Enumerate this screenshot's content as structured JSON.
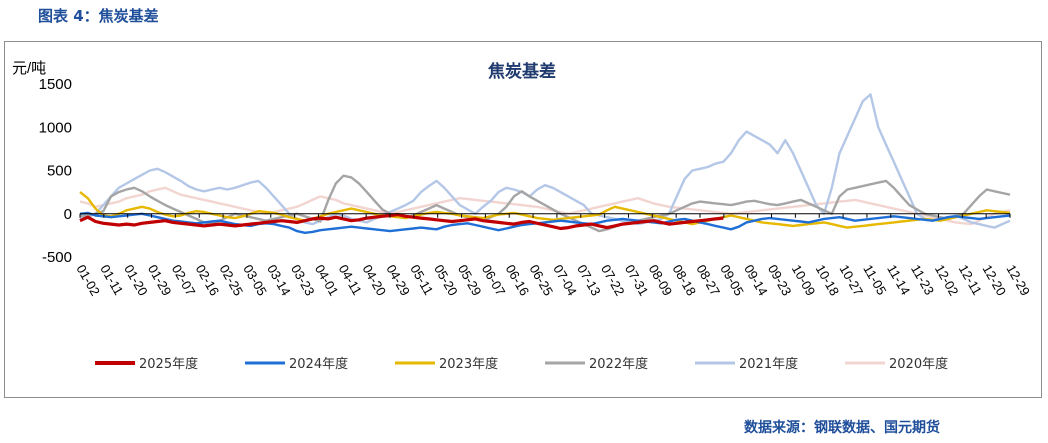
{
  "figure_title": "图表 4：焦炭基差",
  "source": "数据来源：钢联数据、国元期货",
  "chart_data": {
    "type": "line",
    "title": "焦炭基差",
    "ylabel": "元/吨",
    "ylim": [
      -500,
      1500
    ],
    "yticks": [
      "1500",
      "1000",
      "500",
      "0",
      "-500"
    ],
    "ytick_values": [
      1500,
      1000,
      500,
      0,
      -500
    ],
    "x_tick_labels": [
      "01-02",
      "01-11",
      "01-20",
      "01-29",
      "02-07",
      "02-16",
      "02-25",
      "03-05",
      "03-14",
      "03-23",
      "04-01",
      "04-11",
      "04-20",
      "04-29",
      "05-11",
      "05-20",
      "05-29",
      "06-07",
      "06-16",
      "06-25",
      "07-04",
      "07-13",
      "07-22",
      "07-31",
      "08-09",
      "08-18",
      "08-27",
      "09-05",
      "09-14",
      "09-23",
      "10-09",
      "10-18",
      "10-27",
      "11-05",
      "11-14",
      "11-23",
      "12-02",
      "12-11",
      "12-20",
      "12-29"
    ],
    "x": [
      0,
      2,
      4,
      6,
      8,
      10,
      12,
      14,
      16,
      18,
      20,
      22,
      24,
      26,
      28,
      30,
      32,
      34,
      36,
      38,
      40,
      42,
      44,
      46,
      48,
      50,
      52,
      54,
      56,
      58,
      60,
      62,
      64,
      66,
      68,
      70,
      72,
      74,
      76,
      78,
      80,
      82,
      84,
      86,
      88,
      90,
      92,
      94,
      96,
      98,
      100,
      102,
      104,
      106,
      108,
      110,
      112,
      114,
      116,
      118,
      120,
      122,
      124,
      126,
      128,
      130,
      132,
      134,
      136,
      138,
      140,
      142,
      144,
      146,
      148,
      150,
      152,
      154,
      156,
      158,
      160,
      162,
      164,
      166,
      168,
      170,
      172,
      174,
      176,
      178,
      180,
      182,
      184,
      186,
      188,
      190,
      192,
      194,
      196,
      198,
      200,
      202,
      204,
      206,
      208,
      210,
      212,
      214,
      216,
      218,
      220,
      222,
      224,
      226,
      228,
      230,
      232,
      234,
      236,
      238,
      240
    ],
    "series": [
      {
        "name": "2025年度",
        "color": "#c00000",
        "width": 3.2,
        "values": [
          -80,
          -40,
          -90,
          -110,
          -120,
          -130,
          -120,
          -130,
          -110,
          -100,
          -90,
          -80,
          -100,
          -110,
          -120,
          -130,
          -140,
          -130,
          -120,
          -130,
          -140,
          -130,
          -120,
          -110,
          -100,
          -90,
          -80,
          -90,
          -100,
          -80,
          -60,
          -50,
          -60,
          -40,
          -60,
          -80,
          -70,
          -50,
          -40,
          -30,
          -20,
          -10,
          -30,
          -40,
          -50,
          -60,
          -70,
          -80,
          -90,
          -80,
          -70,
          -60,
          -80,
          -90,
          -100,
          -110,
          -120,
          -100,
          -90,
          -110,
          -130,
          -150,
          -170,
          -160,
          -140,
          -130,
          -120,
          -140,
          -160,
          -140,
          -120,
          -110,
          -100,
          -90,
          -80,
          -100,
          -120,
          -110,
          -100,
          -90,
          -80,
          -70,
          -60,
          -50,
          null,
          null,
          null,
          null,
          null,
          null,
          null,
          null,
          null,
          null,
          null,
          null,
          null,
          null,
          null,
          null,
          null,
          null,
          null,
          null,
          null,
          null,
          null,
          null,
          null,
          null,
          null,
          null,
          null,
          null,
          null,
          null,
          null,
          null,
          null,
          null,
          null
        ]
      },
      {
        "name": "2024年度",
        "color": "#1f6fd6",
        "width": 2.4,
        "values": [
          0,
          10,
          -20,
          -30,
          -40,
          -30,
          -20,
          -10,
          0,
          -20,
          -40,
          -60,
          -80,
          -90,
          -100,
          -110,
          -100,
          -90,
          -80,
          -100,
          -120,
          -130,
          -140,
          -120,
          -110,
          -120,
          -140,
          -160,
          -200,
          -220,
          -210,
          -190,
          -180,
          -170,
          -160,
          -150,
          -160,
          -170,
          -180,
          -190,
          -200,
          -190,
          -180,
          -170,
          -160,
          -170,
          -180,
          -150,
          -130,
          -120,
          -110,
          -130,
          -150,
          -170,
          -190,
          -170,
          -150,
          -130,
          -120,
          -110,
          -100,
          -90,
          -80,
          -90,
          -100,
          -110,
          -120,
          -100,
          -80,
          -70,
          -60,
          -70,
          -80,
          -90,
          -100,
          -110,
          -90,
          -70,
          -60,
          -80,
          -100,
          -120,
          -140,
          -160,
          -180,
          -150,
          -100,
          -80,
          -60,
          -50,
          -60,
          -70,
          -80,
          -90,
          -100,
          -80,
          -60,
          -50,
          -40,
          -60,
          -80,
          -70,
          -60,
          -50,
          -40,
          -30,
          -40,
          -50,
          -60,
          -70,
          -80,
          -60,
          -40,
          -30,
          -40,
          -50,
          -60,
          -50,
          -40,
          -30,
          -20
        ]
      },
      {
        "name": "2023年度",
        "color": "#e6b800",
        "width": 2.4,
        "values": [
          250,
          180,
          60,
          -20,
          -30,
          0,
          40,
          60,
          80,
          60,
          20,
          -10,
          -30,
          -20,
          10,
          30,
          20,
          0,
          -20,
          -40,
          -50,
          -30,
          0,
          30,
          20,
          10,
          -10,
          -40,
          -60,
          -80,
          -60,
          -30,
          0,
          20,
          40,
          60,
          40,
          20,
          0,
          -20,
          -30,
          -40,
          -50,
          -30,
          -10,
          10,
          20,
          10,
          0,
          -20,
          -30,
          -40,
          -50,
          -30,
          -10,
          0,
          10,
          -10,
          -30,
          -50,
          -60,
          -70,
          -60,
          -50,
          -40,
          -30,
          -20,
          -10,
          40,
          80,
          60,
          40,
          20,
          0,
          -20,
          -40,
          -60,
          -80,
          -100,
          -120,
          -100,
          -80,
          -60,
          -40,
          -20,
          -40,
          -60,
          -80,
          -100,
          -110,
          -120,
          -130,
          -140,
          -130,
          -120,
          -110,
          -100,
          -120,
          -140,
          -160,
          -150,
          -140,
          -130,
          -120,
          -110,
          -100,
          -90,
          -80,
          -70,
          -60,
          -70,
          -80,
          -60,
          -40,
          -20,
          0,
          20,
          40,
          30,
          20,
          10
        ]
      },
      {
        "name": "2022年度",
        "color": "#a5a5a5",
        "width": 2.4,
        "values": [
          -30,
          -20,
          0,
          30,
          200,
          250,
          280,
          300,
          260,
          200,
          150,
          100,
          60,
          20,
          -20,
          -60,
          -100,
          -120,
          -80,
          -40,
          0,
          -20,
          -40,
          -60,
          -80,
          -60,
          -40,
          -20,
          0,
          -30,
          -60,
          -90,
          150,
          350,
          440,
          420,
          350,
          250,
          150,
          50,
          0,
          -30,
          -50,
          -20,
          20,
          60,
          100,
          60,
          20,
          -20,
          -40,
          -60,
          -80,
          -40,
          0,
          80,
          200,
          260,
          200,
          150,
          100,
          50,
          0,
          -40,
          -80,
          -120,
          -160,
          -200,
          -180,
          -150,
          -120,
          -100,
          -80,
          -60,
          -40,
          -20,
          0,
          40,
          80,
          120,
          140,
          130,
          120,
          110,
          100,
          120,
          140,
          150,
          130,
          110,
          100,
          120,
          140,
          160,
          120,
          80,
          40,
          0,
          200,
          280,
          300,
          320,
          340,
          360,
          380,
          300,
          200,
          100,
          50,
          0,
          -20,
          -40,
          -60,
          -30,
          0,
          100,
          200,
          280,
          260,
          240,
          220
        ]
      },
      {
        "name": "2021年度",
        "color": "#b4c7e7",
        "width": 2.4,
        "values": [
          -60,
          -40,
          0,
          100,
          200,
          300,
          350,
          400,
          450,
          500,
          520,
          480,
          430,
          380,
          320,
          280,
          260,
          280,
          300,
          280,
          300,
          330,
          360,
          380,
          300,
          200,
          100,
          0,
          -60,
          -100,
          -120,
          -80,
          -40,
          0,
          -20,
          -60,
          -80,
          -100,
          -60,
          -20,
          20,
          60,
          100,
          150,
          250,
          320,
          380,
          300,
          200,
          100,
          50,
          0,
          80,
          150,
          250,
          300,
          280,
          250,
          200,
          280,
          330,
          300,
          250,
          200,
          150,
          100,
          0,
          -20,
          -40,
          -60,
          -80,
          -100,
          -120,
          -100,
          -80,
          -60,
          0,
          200,
          400,
          500,
          520,
          540,
          580,
          600,
          700,
          850,
          950,
          900,
          850,
          800,
          700,
          850,
          700,
          500,
          300,
          100,
          0,
          300,
          700,
          900,
          1100,
          1300,
          1380,
          1000,
          800,
          600,
          400,
          200,
          0,
          -60,
          -80,
          -60,
          -40,
          -20,
          -60,
          -100,
          -120,
          -140,
          -160,
          -120,
          -80
        ]
      },
      {
        "name": "2020年度",
        "color": "#f2d5d0",
        "width": 2.4,
        "values": [
          140,
          120,
          80,
          100,
          120,
          140,
          180,
          200,
          220,
          260,
          280,
          300,
          260,
          220,
          200,
          180,
          160,
          140,
          120,
          100,
          80,
          60,
          40,
          20,
          0,
          20,
          40,
          60,
          80,
          120,
          160,
          200,
          180,
          160,
          120,
          100,
          80,
          60,
          40,
          20,
          0,
          20,
          40,
          60,
          80,
          100,
          120,
          140,
          160,
          180,
          170,
          160,
          150,
          140,
          130,
          120,
          110,
          100,
          90,
          80,
          60,
          40,
          20,
          0,
          20,
          40,
          60,
          80,
          100,
          120,
          140,
          160,
          180,
          150,
          120,
          100,
          80,
          70,
          60,
          50,
          40,
          30,
          20,
          10,
          0,
          10,
          20,
          30,
          40,
          50,
          60,
          70,
          80,
          90,
          100,
          110,
          120,
          130,
          140,
          150,
          160,
          140,
          120,
          100,
          80,
          60,
          40,
          20,
          0,
          -20,
          -40,
          -60,
          -80,
          -100,
          -110,
          -120,
          -80,
          -40,
          0,
          20,
          40
        ]
      }
    ],
    "legend_position": "bottom",
    "grid": false
  }
}
